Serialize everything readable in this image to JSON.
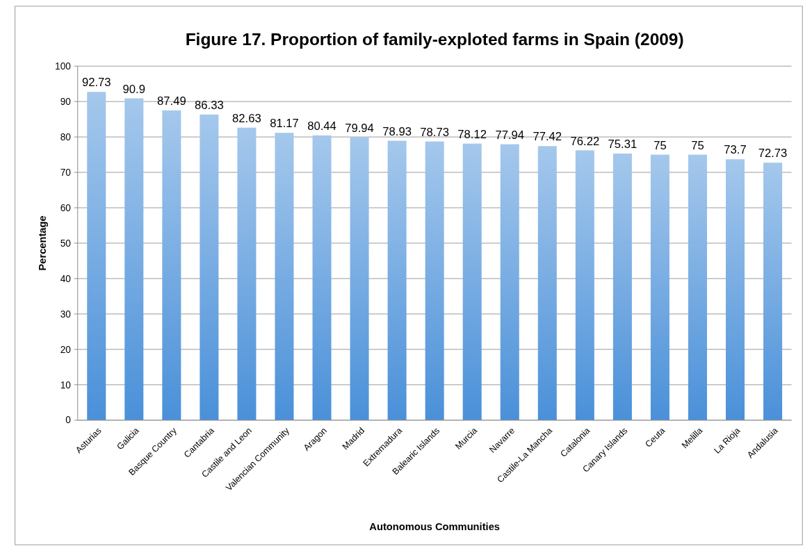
{
  "chart_data": {
    "type": "bar",
    "title": "Figure 17. Proportion of family-exploted farms in Spain (2009)",
    "xlabel": "Autonomous Communities",
    "ylabel": "Percentage",
    "categories": [
      "Asturias",
      "Galicia",
      "Basque Country",
      "Cantabria",
      "Castile and Leon",
      "Valencian Community",
      "Aragon",
      "Madrid",
      "Extremadura",
      "Balearic Islands",
      "Murcia",
      "Navarre",
      "Castile-La Mancha",
      "Catalonia",
      "Canary Islands",
      "Ceuta",
      "Melilla",
      "La Rioja",
      "Andalusia"
    ],
    "values": [
      92.73,
      90.9,
      87.49,
      86.33,
      82.63,
      81.17,
      80.44,
      79.94,
      78.93,
      78.73,
      78.12,
      77.94,
      77.42,
      76.22,
      75.31,
      75,
      75,
      73.7,
      72.73
    ],
    "color": "#4a90d9",
    "ylim": [
      0,
      100
    ],
    "yticks": [
      0,
      10,
      20,
      30,
      40,
      50,
      60,
      70,
      80,
      90,
      100
    ],
    "grid": "y",
    "data_labels": true
  }
}
